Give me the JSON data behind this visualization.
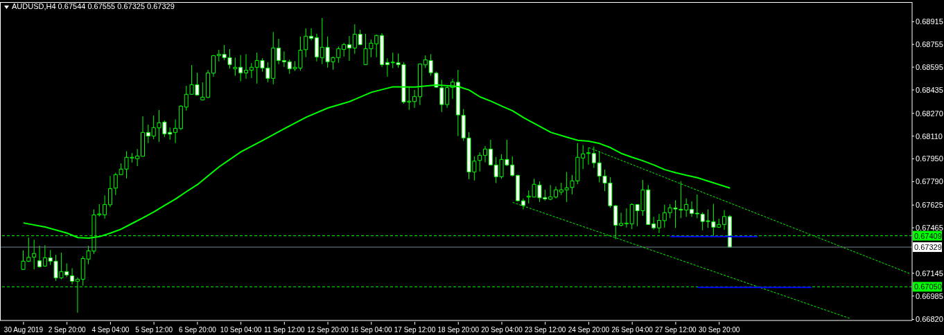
{
  "chart_data": {
    "type": "candlestick",
    "title": "AUDUSD,H4 0.67544 0.67555 0.67325 0.67329",
    "color": "#00ff00",
    "categories": [
      "30 Aug 2019",
      null,
      null,
      null,
      null,
      null,
      null,
      null,
      "2 Sep 20:00",
      null,
      null,
      null,
      null,
      null,
      null,
      null,
      "4 Sep 04:00",
      null,
      null,
      null,
      null,
      null,
      null,
      null,
      "5 Sep 12:00",
      null,
      null,
      null,
      null,
      null,
      null,
      null,
      "6 Sep 20:00",
      null,
      null,
      null,
      null,
      null,
      null,
      null,
      "10 Sep 04:00",
      null,
      null,
      null,
      null,
      null,
      null,
      null,
      "11 Sep 12:00",
      null,
      null,
      null,
      null,
      null,
      null,
      null,
      "12 Sep 20:00",
      null,
      null,
      null,
      null,
      null,
      null,
      null,
      "16 Sep 04:00",
      null,
      null,
      null,
      null,
      null,
      null,
      null,
      "17 Sep 12:00",
      null,
      null,
      null,
      null,
      null,
      null,
      null,
      "18 Sep 20:00",
      null,
      null,
      null,
      null,
      null,
      null,
      null,
      "20 Sep 04:00",
      null,
      null,
      null,
      null,
      null,
      null,
      null,
      "23 Sep 12:00",
      null,
      null,
      null,
      null,
      null,
      null,
      null,
      "24 Sep 20:00",
      null,
      null,
      null,
      null,
      null,
      null,
      null,
      "26 Sep 04:00",
      null,
      null,
      null,
      null,
      null,
      null,
      null,
      "27 Sep 12:00",
      null,
      null,
      null,
      null,
      null,
      null,
      null,
      "30 Sep 20:00",
      null,
      null,
      null,
      null,
      null,
      null,
      null,
      null,
      null,
      null,
      null,
      null,
      null,
      null,
      null,
      null,
      null,
      null,
      null,
      null,
      null,
      null,
      null,
      null,
      null,
      null,
      null,
      null,
      null,
      null,
      null,
      null,
      null,
      null,
      null
    ],
    "ohlc": [
      [
        0.67172,
        0.67306,
        0.67168,
        0.6723
      ],
      [
        0.6723,
        0.67396,
        0.67225,
        0.67257
      ],
      [
        0.67259,
        0.67382,
        0.67172,
        0.67284
      ],
      [
        0.67233,
        0.67339,
        0.67184,
        0.67191
      ],
      [
        0.67196,
        0.67343,
        0.67191,
        0.67254
      ],
      [
        0.67254,
        0.67309,
        0.67204,
        0.6723
      ],
      [
        0.6723,
        0.67274,
        0.67092,
        0.67113
      ],
      [
        0.67113,
        0.6729,
        0.67103,
        0.67157
      ],
      [
        0.67157,
        0.67215,
        0.67119,
        0.67133
      ],
      [
        0.67128,
        0.67181,
        0.67067,
        0.67089
      ],
      [
        0.67089,
        0.67115,
        0.66868,
        0.67103
      ],
      [
        0.67103,
        0.67266,
        0.67058,
        0.67249
      ],
      [
        0.67245,
        0.67339,
        0.67209,
        0.67303
      ],
      [
        0.67301,
        0.67595,
        0.67282,
        0.67556
      ],
      [
        0.67556,
        0.67631,
        0.67545,
        0.67563
      ],
      [
        0.67556,
        0.67693,
        0.6753,
        0.67629
      ],
      [
        0.67627,
        0.6783,
        0.6761,
        0.67741
      ],
      [
        0.67744,
        0.67853,
        0.67696,
        0.67839
      ],
      [
        0.67839,
        0.67918,
        0.67837,
        0.67878
      ],
      [
        0.67878,
        0.68004,
        0.67812,
        0.67961
      ],
      [
        0.67956,
        0.67991,
        0.67923,
        0.67959
      ],
      [
        0.67951,
        0.6802,
        0.67899,
        0.6797
      ],
      [
        0.67968,
        0.68249,
        0.67967,
        0.68136
      ],
      [
        0.68136,
        0.68191,
        0.68061,
        0.6811
      ],
      [
        0.6811,
        0.68254,
        0.68089,
        0.6817
      ],
      [
        0.68168,
        0.68293,
        0.68069,
        0.68204
      ],
      [
        0.68209,
        0.6822,
        0.68105,
        0.68126
      ],
      [
        0.68136,
        0.68171,
        0.68085,
        0.68124
      ],
      [
        0.68136,
        0.68228,
        0.68061,
        0.68165
      ],
      [
        0.68163,
        0.68327,
        0.68153,
        0.68321
      ],
      [
        0.68314,
        0.68464,
        0.6829,
        0.68404
      ],
      [
        0.68404,
        0.6861,
        0.68402,
        0.68472
      ],
      [
        0.68472,
        0.68556,
        0.68397,
        0.68399
      ],
      [
        0.68365,
        0.68488,
        0.68363,
        0.68384
      ],
      [
        0.68382,
        0.68576,
        0.68379,
        0.68555
      ],
      [
        0.68553,
        0.68681,
        0.68528,
        0.68676
      ],
      [
        0.68676,
        0.68717,
        0.68636,
        0.68686
      ],
      [
        0.68686,
        0.68751,
        0.68645,
        0.68662
      ],
      [
        0.68662,
        0.68722,
        0.68584,
        0.68613
      ],
      [
        0.68584,
        0.68662,
        0.68535,
        0.68594
      ],
      [
        0.68594,
        0.68681,
        0.68496,
        0.68555
      ],
      [
        0.68555,
        0.68686,
        0.68514,
        0.68574
      ],
      [
        0.68574,
        0.68624,
        0.68519,
        0.68594
      ],
      [
        0.68594,
        0.68697,
        0.6848,
        0.68642
      ],
      [
        0.68642,
        0.68657,
        0.68564,
        0.68589
      ],
      [
        0.68589,
        0.68629,
        0.68489,
        0.68516
      ],
      [
        0.68516,
        0.68843,
        0.68475,
        0.6873
      ],
      [
        0.6873,
        0.68795,
        0.68616,
        0.68642
      ],
      [
        0.68642,
        0.68706,
        0.68597,
        0.68633
      ],
      [
        0.68633,
        0.68649,
        0.68548,
        0.68584
      ],
      [
        0.68584,
        0.68637,
        0.68569,
        0.68594
      ],
      [
        0.68589,
        0.68811,
        0.68571,
        0.68715
      ],
      [
        0.68718,
        0.68868,
        0.68665,
        0.68813
      ],
      [
        0.68813,
        0.68868,
        0.68784,
        0.68798
      ],
      [
        0.68803,
        0.6883,
        0.68636,
        0.68667
      ],
      [
        0.68662,
        0.68941,
        0.68616,
        0.68735
      ],
      [
        0.68735,
        0.68811,
        0.68592,
        0.68633
      ],
      [
        0.68633,
        0.6867,
        0.68577,
        0.68662
      ],
      [
        0.68662,
        0.6874,
        0.68626,
        0.68725
      ],
      [
        0.6872,
        0.68766,
        0.6867,
        0.68754
      ],
      [
        0.68754,
        0.68814,
        0.6864,
        0.6873
      ],
      [
        0.6873,
        0.68897,
        0.68689,
        0.68827
      ],
      [
        0.68827,
        0.68858,
        0.68749,
        0.68754
      ],
      [
        0.68613,
        0.68829,
        0.68611,
        0.68725
      ],
      [
        0.68725,
        0.6879,
        0.68665,
        0.68764
      ],
      [
        0.68759,
        0.68824,
        0.68665,
        0.68818
      ],
      [
        0.68818,
        0.68834,
        0.68597,
        0.68613
      ],
      [
        0.68628,
        0.68657,
        0.68528,
        0.68613
      ],
      [
        0.68626,
        0.68697,
        0.68588,
        0.68628
      ],
      [
        0.68626,
        0.68691,
        0.68592,
        0.68613
      ],
      [
        0.68613,
        0.68629,
        0.68337,
        0.6835
      ],
      [
        0.6835,
        0.68459,
        0.68295,
        0.68356
      ],
      [
        0.68353,
        0.68434,
        0.68309,
        0.68389
      ],
      [
        0.68387,
        0.68621,
        0.68329,
        0.68618
      ],
      [
        0.68611,
        0.68678,
        0.68589,
        0.68647
      ],
      [
        0.68642,
        0.68686,
        0.68535,
        0.68556
      ],
      [
        0.68553,
        0.68564,
        0.6845,
        0.68454
      ],
      [
        0.6845,
        0.68507,
        0.6828,
        0.68332
      ],
      [
        0.68332,
        0.68459,
        0.68309,
        0.68452
      ],
      [
        0.68452,
        0.68512,
        0.68372,
        0.68491
      ],
      [
        0.68489,
        0.68576,
        0.6811,
        0.68259
      ],
      [
        0.68256,
        0.68301,
        0.68077,
        0.68097
      ],
      [
        0.68097,
        0.68137,
        0.67806,
        0.67858
      ],
      [
        0.67858,
        0.67967,
        0.67798,
        0.67934
      ],
      [
        0.67939,
        0.67996,
        0.67861,
        0.67975
      ],
      [
        0.67975,
        0.6804,
        0.67926,
        0.68019
      ],
      [
        0.68019,
        0.68084,
        0.67902,
        0.67907
      ],
      [
        0.67907,
        0.67963,
        0.6778,
        0.67824
      ],
      [
        0.67824,
        0.67983,
        0.6781,
        0.67946
      ],
      [
        0.67946,
        0.68084,
        0.67899,
        0.67907
      ],
      [
        0.67907,
        0.67967,
        0.67826,
        0.67834
      ],
      [
        0.67834,
        0.67839,
        0.67652,
        0.67655
      ],
      [
        0.67655,
        0.67671,
        0.67595,
        0.67622
      ],
      [
        0.67681,
        0.67728,
        0.67636,
        0.67688
      ],
      [
        0.67681,
        0.6781,
        0.6768,
        0.67771
      ],
      [
        0.67766,
        0.67792,
        0.67647,
        0.67676
      ],
      [
        0.67678,
        0.67733,
        0.67655,
        0.67668
      ],
      [
        0.67666,
        0.67766,
        0.67659,
        0.67683
      ],
      [
        0.67681,
        0.67756,
        0.67671,
        0.67732
      ],
      [
        0.67717,
        0.67782,
        0.67696,
        0.67732
      ],
      [
        0.67732,
        0.67858,
        0.67647,
        0.67746
      ],
      [
        0.67749,
        0.67837,
        0.677,
        0.67795
      ],
      [
        0.67795,
        0.68061,
        0.67772,
        0.67961
      ],
      [
        0.67956,
        0.68048,
        0.67878,
        0.67985
      ],
      [
        0.67988,
        0.68029,
        0.6791,
        0.67991
      ],
      [
        0.67988,
        0.68036,
        0.67887,
        0.67922
      ],
      [
        0.67922,
        0.68004,
        0.67785,
        0.67829
      ],
      [
        0.67829,
        0.67874,
        0.67723,
        0.6778
      ],
      [
        0.6778,
        0.67821,
        0.67606,
        0.6762
      ],
      [
        0.6762,
        0.67626,
        0.67384,
        0.67483
      ],
      [
        0.67483,
        0.67571,
        0.67474,
        0.67496
      ],
      [
        0.67493,
        0.67602,
        0.67467,
        0.67498
      ],
      [
        0.67493,
        0.67639,
        0.67456,
        0.67629
      ],
      [
        0.67629,
        0.67631,
        0.67476,
        0.67585
      ],
      [
        0.67585,
        0.67801,
        0.67549,
        0.67732
      ],
      [
        0.67732,
        0.67766,
        0.67486,
        0.67488
      ],
      [
        0.67493,
        0.67542,
        0.67452,
        0.67464
      ],
      [
        0.67464,
        0.67563,
        0.67428,
        0.67517
      ],
      [
        0.67515,
        0.67629,
        0.67467,
        0.67571
      ],
      [
        0.67571,
        0.67631,
        0.67533,
        0.67606
      ],
      [
        0.67605,
        0.67659,
        0.67464,
        0.67597
      ],
      [
        0.67595,
        0.67793,
        0.67533,
        0.6759
      ],
      [
        0.6759,
        0.67671,
        0.67542,
        0.67629
      ],
      [
        0.67595,
        0.6765,
        0.67542,
        0.67566
      ],
      [
        0.67566,
        0.67699,
        0.67533,
        0.67563
      ],
      [
        0.67561,
        0.67574,
        0.67447,
        0.67509
      ],
      [
        0.67512,
        0.67595,
        0.67464,
        0.67509
      ],
      [
        0.67508,
        0.67634,
        0.67408,
        0.67469
      ],
      [
        0.67469,
        0.67529,
        0.67464,
        0.67488
      ],
      [
        0.67488,
        0.6759,
        0.67451,
        0.67545
      ],
      [
        0.67544,
        0.67555,
        0.67325,
        0.67329
      ],
      null,
      null,
      null,
      null,
      null,
      null,
      null,
      null,
      null,
      null,
      null,
      null,
      null,
      null,
      null,
      null,
      null,
      null,
      null,
      null,
      null,
      null,
      null,
      null,
      null,
      null,
      null,
      null,
      null,
      null,
      null,
      null,
      null
    ],
    "series": [
      {
        "type": "line",
        "color": "#00ff00",
        "line_style": "solid",
        "values": [
          0.67499,
          null,
          null,
          null,
          0.6747,
          null,
          null,
          null,
          0.67428,
          null,
          0.67396,
          null,
          0.67392,
          null,
          0.67403,
          null,
          0.67428,
          null,
          0.67456,
          null,
          0.67496,
          null,
          0.67535,
          null,
          0.67577,
          null,
          0.67623,
          null,
          0.67668,
          null,
          0.6772,
          null,
          0.67769,
          null,
          null,
          null,
          0.67894,
          null,
          null,
          null,
          0.67999,
          null,
          null,
          null,
          0.6808,
          null,
          null,
          null,
          0.68163,
          null,
          null,
          null,
          0.68243,
          null,
          null,
          null,
          0.68308,
          null,
          null,
          null,
          0.68353,
          null,
          null,
          null,
          0.68418,
          null,
          null,
          null,
          0.68457,
          null,
          null,
          null,
          0.68455,
          null,
          null,
          null,
          0.6847,
          null,
          null,
          null,
          0.68459,
          null,
          0.68434,
          null,
          0.68386,
          null,
          0.68356,
          null,
          0.68321,
          null,
          0.68288,
          null,
          0.6824,
          null,
          0.68199,
          null,
          null,
          0.68137,
          null,
          null,
          0.68102,
          null,
          0.6808,
          null,
          0.68074,
          null,
          0.68058,
          null,
          0.68029,
          null,
          0.67988,
          null,
          0.67961,
          null,
          0.67936,
          null,
          0.67907,
          null,
          0.67874,
          null,
          0.67853,
          null,
          0.67834,
          null,
          0.67817,
          null,
          0.67793,
          null,
          0.67769,
          null,
          0.67744,
          null,
          null,
          null,
          null,
          null,
          null,
          null,
          null,
          null,
          null,
          null,
          null,
          null,
          null,
          null,
          null,
          null,
          null,
          null,
          null,
          null,
          null,
          null,
          null,
          null,
          null,
          null,
          null,
          null,
          null,
          null,
          null,
          null
        ]
      },
      {
        "type": "line",
        "color": "#00ff00",
        "line_style": "dashed",
        "values": [
          null,
          null,
          null,
          null,
          null,
          null,
          null,
          null,
          null,
          null,
          null,
          null,
          null,
          null,
          null,
          null,
          null,
          null,
          null,
          null,
          null,
          null,
          null,
          null,
          null,
          null,
          null,
          null,
          null,
          null,
          null,
          null,
          null,
          null,
          null,
          null,
          null,
          null,
          null,
          null,
          null,
          null,
          null,
          null,
          null,
          null,
          null,
          null,
          null,
          null,
          null,
          null,
          null,
          null,
          null,
          null,
          null,
          null,
          null,
          null,
          null,
          null,
          null,
          null,
          null,
          null,
          null,
          null,
          null,
          null,
          null,
          null,
          null,
          null,
          null,
          null,
          null,
          null,
          null,
          null,
          null,
          null,
          null,
          null,
          null,
          null,
          null,
          null,
          null,
          null,
          null,
          null,
          null,
          null,
          null,
          null,
          null,
          null,
          null,
          null,
          null,
          null,
          null,
          null,
          0.68029,
          null,
          null,
          null,
          null,
          null,
          null,
          null,
          null,
          null,
          null,
          null,
          null,
          null,
          null,
          null,
          null,
          null,
          null,
          null,
          null,
          null,
          null,
          null,
          null,
          null,
          null,
          null,
          null,
          null,
          null,
          null,
          null,
          null,
          null,
          null,
          null,
          null,
          null,
          null,
          null,
          null,
          null,
          null,
          null,
          null,
          null,
          null,
          null,
          null,
          null,
          null,
          null,
          null,
          null,
          null,
          null,
          null,
          null,
          0.67144
        ]
      },
      {
        "type": "line",
        "color": "#00ff00",
        "line_style": "dashed",
        "values": [
          null,
          null,
          null,
          null,
          null,
          null,
          null,
          null,
          null,
          null,
          null,
          null,
          null,
          null,
          null,
          null,
          null,
          null,
          null,
          null,
          null,
          null,
          null,
          null,
          null,
          null,
          null,
          null,
          null,
          null,
          null,
          null,
          null,
          null,
          null,
          null,
          null,
          null,
          null,
          null,
          null,
          null,
          null,
          null,
          null,
          null,
          null,
          null,
          null,
          null,
          null,
          null,
          null,
          null,
          null,
          null,
          null,
          null,
          null,
          null,
          null,
          null,
          null,
          null,
          null,
          null,
          null,
          null,
          null,
          null,
          null,
          null,
          null,
          null,
          null,
          null,
          null,
          null,
          null,
          null,
          null,
          null,
          null,
          null,
          null,
          null,
          null,
          null,
          null,
          null,
          0.67644,
          null,
          null,
          null,
          null,
          null,
          null,
          null,
          null,
          null,
          null,
          null,
          null,
          null,
          null,
          null,
          null,
          null,
          null,
          null,
          null,
          null,
          null,
          null,
          null,
          null,
          null,
          null,
          null,
          null,
          null,
          null,
          null,
          null,
          null,
          null,
          null,
          null,
          null,
          null,
          null,
          null,
          null,
          null,
          null,
          null,
          null,
          null,
          null,
          null,
          null,
          null,
          null,
          null,
          null,
          null,
          null,
          null,
          null,
          null,
          null,
          null,
          0.66828,
          null,
          null,
          null,
          null,
          null,
          null,
          null,
          null,
          null,
          null,
          null
        ]
      },
      {
        "type": "line",
        "color": "#0000ff",
        "line_style": "solid",
        "values": [
          null,
          null,
          null,
          null,
          null,
          null,
          null,
          null,
          null,
          null,
          null,
          null,
          null,
          null,
          null,
          null,
          null,
          null,
          null,
          null,
          null,
          null,
          null,
          null,
          null,
          null,
          null,
          null,
          null,
          null,
          null,
          null,
          null,
          null,
          null,
          null,
          null,
          null,
          null,
          null,
          null,
          null,
          null,
          null,
          null,
          null,
          null,
          null,
          null,
          null,
          null,
          null,
          null,
          null,
          null,
          null,
          null,
          null,
          null,
          null,
          null,
          null,
          null,
          null,
          null,
          null,
          null,
          null,
          null,
          null,
          null,
          null,
          null,
          null,
          null,
          null,
          null,
          null,
          null,
          null,
          null,
          null,
          null,
          null,
          null,
          null,
          null,
          null,
          null,
          null,
          null,
          null,
          null,
          null,
          null,
          null,
          null,
          null,
          null,
          null,
          null,
          null,
          null,
          null,
          null,
          null,
          null,
          null,
          null,
          null,
          null,
          null,
          null,
          null,
          null,
          null,
          null,
          null,
          null,
          0.67403,
          null,
          null,
          null,
          null,
          null,
          null,
          null,
          null,
          null,
          null,
          null,
          null,
          null,
          null,
          null,
          0.67403,
          null,
          null,
          null,
          null,
          null,
          null,
          null,
          null,
          null,
          null,
          null,
          null,
          null,
          null,
          null,
          null,
          null,
          null,
          null,
          null,
          null,
          null,
          null,
          null,
          null,
          null,
          null,
          null
        ]
      },
      {
        "type": "line",
        "color": "#0000ff",
        "line_style": "solid",
        "values": [
          null,
          null,
          null,
          null,
          null,
          null,
          null,
          null,
          null,
          null,
          null,
          null,
          null,
          null,
          null,
          null,
          null,
          null,
          null,
          null,
          null,
          null,
          null,
          null,
          null,
          null,
          null,
          null,
          null,
          null,
          null,
          null,
          null,
          null,
          null,
          null,
          null,
          null,
          null,
          null,
          null,
          null,
          null,
          null,
          null,
          null,
          null,
          null,
          null,
          null,
          null,
          null,
          null,
          null,
          null,
          null,
          null,
          null,
          null,
          null,
          null,
          null,
          null,
          null,
          null,
          null,
          null,
          null,
          null,
          null,
          null,
          null,
          null,
          null,
          null,
          null,
          null,
          null,
          null,
          null,
          null,
          null,
          null,
          null,
          null,
          null,
          null,
          null,
          null,
          null,
          null,
          null,
          null,
          null,
          null,
          null,
          null,
          null,
          null,
          null,
          null,
          null,
          null,
          null,
          null,
          null,
          null,
          null,
          null,
          null,
          null,
          null,
          null,
          null,
          null,
          null,
          null,
          null,
          null,
          null,
          null,
          null,
          null,
          null,
          0.67045,
          null,
          null,
          null,
          null,
          null,
          null,
          null,
          null,
          null,
          null,
          null,
          null,
          null,
          null,
          null,
          null,
          null,
          null,
          null,
          null,
          0.67045,
          null,
          null,
          null,
          null,
          null,
          null,
          null,
          null,
          null,
          null,
          null,
          null,
          null,
          null,
          null,
          null,
          null,
          null
        ]
      }
    ],
    "ref_lines": [
      {
        "axis": "y",
        "value": 0.67409,
        "label": "0.67409",
        "color": "#00ff00",
        "line_style": "dashed"
      },
      {
        "axis": "y",
        "value": 0.67329,
        "label": "0.67329",
        "color": "#778899",
        "line_style": "solid"
      },
      {
        "axis": "y",
        "value": 0.6705,
        "label": "0.67050",
        "color": "#00ff00",
        "line_style": "dashed"
      }
    ],
    "ylim": [
      0.66813,
      0.69053
    ],
    "yticks": [
      0.68915,
      0.68755,
      0.68595,
      0.68435,
      {
        "value": 0.6827,
        "label": "0.68270"
      },
      {
        "value": 0.6811,
        "label": "0.68110"
      },
      {
        "value": 0.6795,
        "label": "0.67950"
      },
      {
        "value": 0.6779,
        "label": "0.67790"
      },
      0.67625,
      0.67465,
      0.67145,
      0.66985,
      {
        "value": 0.6682,
        "label": "0.66820"
      }
    ]
  }
}
